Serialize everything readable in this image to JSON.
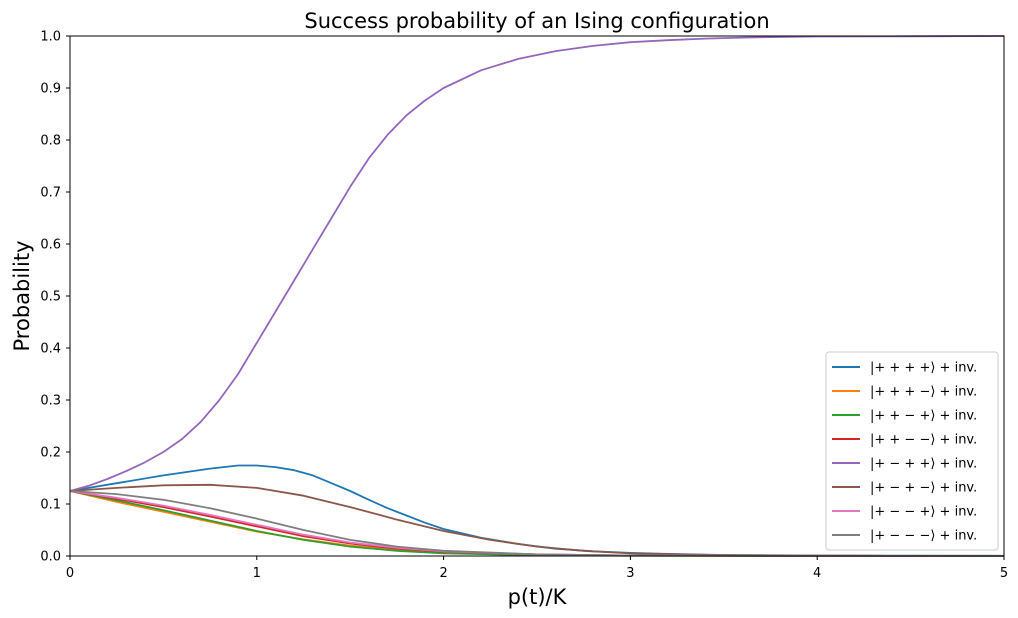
{
  "chart_data": {
    "type": "line",
    "title": "Success probability of an Ising configuration",
    "xlabel": "p(t)/K",
    "ylabel": "Probability",
    "xlim": [
      0,
      5
    ],
    "ylim": [
      0,
      1
    ],
    "xticks": [
      0,
      1,
      2,
      3,
      4,
      5
    ],
    "xtick_labels": [
      "0",
      "1",
      "2",
      "3",
      "4",
      "5"
    ],
    "yticks": [
      0,
      0.1,
      0.2,
      0.3,
      0.4,
      0.5,
      0.6,
      0.7,
      0.8,
      0.9,
      1.0
    ],
    "ytick_labels": [
      "0.0",
      "0.1",
      "0.2",
      "0.3",
      "0.4",
      "0.5",
      "0.6",
      "0.7",
      "0.8",
      "0.9",
      "1.0"
    ],
    "grid": false,
    "legend_position": "lower-right",
    "series": [
      {
        "name": "|+ + + +⟩ + inv.",
        "color": "#1f77b4",
        "x": [
          0,
          0.25,
          0.5,
          0.75,
          0.9,
          1.0,
          1.1,
          1.2,
          1.3,
          1.4,
          1.5,
          1.6,
          1.7,
          1.8,
          1.9,
          2.0,
          2.2,
          2.4,
          2.6,
          2.8,
          3.0,
          3.2,
          3.5,
          4.0,
          4.5,
          5.0
        ],
        "y": [
          0.125,
          0.14,
          0.155,
          0.168,
          0.174,
          0.174,
          0.171,
          0.165,
          0.155,
          0.14,
          0.125,
          0.108,
          0.092,
          0.078,
          0.064,
          0.052,
          0.035,
          0.023,
          0.014,
          0.009,
          0.006,
          0.004,
          0.002,
          0.001,
          0.0005,
          0.0003
        ]
      },
      {
        "name": "|+ + + −⟩ + inv.",
        "color": "#ff7f0e",
        "x": [
          0,
          0.25,
          0.5,
          0.75,
          1.0,
          1.25,
          1.5,
          1.75,
          2.0,
          2.5,
          3.0,
          4.0,
          5.0
        ],
        "y": [
          0.125,
          0.104,
          0.085,
          0.066,
          0.047,
          0.032,
          0.02,
          0.012,
          0.006,
          0.002,
          0.0008,
          0.0002,
          0.0001
        ]
      },
      {
        "name": "|+ + − +⟩ + inv.",
        "color": "#2ca02c",
        "x": [
          0,
          0.25,
          0.5,
          0.75,
          1.0,
          1.25,
          1.5,
          1.75,
          2.0,
          2.5,
          3.0,
          4.0,
          5.0
        ],
        "y": [
          0.125,
          0.107,
          0.088,
          0.068,
          0.048,
          0.031,
          0.018,
          0.01,
          0.005,
          0.0015,
          0.0005,
          0.0001,
          0.0001
        ]
      },
      {
        "name": "|+ + − −⟩ + inv.",
        "color": "#d62728",
        "x": [
          0,
          0.25,
          0.5,
          0.75,
          1.0,
          1.25,
          1.5,
          1.75,
          2.0,
          2.5,
          3.0,
          4.0,
          5.0
        ],
        "y": [
          0.125,
          0.11,
          0.094,
          0.076,
          0.057,
          0.038,
          0.024,
          0.014,
          0.008,
          0.003,
          0.001,
          0.0003,
          0.0001
        ]
      },
      {
        "name": "|+ − + +⟩ + inv.",
        "color": "#9467bd",
        "x": [
          0,
          0.1,
          0.2,
          0.3,
          0.4,
          0.5,
          0.6,
          0.7,
          0.8,
          0.9,
          1.0,
          1.1,
          1.2,
          1.3,
          1.4,
          1.5,
          1.6,
          1.7,
          1.8,
          1.9,
          2.0,
          2.2,
          2.4,
          2.6,
          2.8,
          3.0,
          3.2,
          3.4,
          3.6,
          3.8,
          4.0,
          4.5,
          5.0
        ],
        "y": [
          0.125,
          0.135,
          0.148,
          0.163,
          0.18,
          0.2,
          0.225,
          0.258,
          0.3,
          0.35,
          0.41,
          0.47,
          0.53,
          0.59,
          0.65,
          0.71,
          0.765,
          0.81,
          0.847,
          0.876,
          0.9,
          0.934,
          0.956,
          0.971,
          0.981,
          0.988,
          0.992,
          0.995,
          0.997,
          0.998,
          0.999,
          0.9995,
          1.0
        ]
      },
      {
        "name": "|+ − + −⟩ + inv.",
        "color": "#8c564b",
        "x": [
          0,
          0.25,
          0.5,
          0.75,
          1.0,
          1.25,
          1.5,
          1.75,
          2.0,
          2.25,
          2.5,
          2.75,
          3.0,
          3.5,
          4.0,
          4.5,
          5.0
        ],
        "y": [
          0.125,
          0.131,
          0.136,
          0.137,
          0.131,
          0.116,
          0.094,
          0.07,
          0.048,
          0.031,
          0.018,
          0.01,
          0.005,
          0.0015,
          0.0005,
          0.0002,
          0.0001
        ]
      },
      {
        "name": "|+ − − +⟩ + inv.",
        "color": "#e377c2",
        "x": [
          0,
          0.25,
          0.5,
          0.75,
          1.0,
          1.25,
          1.5,
          1.75,
          2.0,
          2.5,
          3.0,
          4.0,
          5.0
        ],
        "y": [
          0.125,
          0.112,
          0.097,
          0.079,
          0.06,
          0.041,
          0.026,
          0.016,
          0.009,
          0.003,
          0.001,
          0.0003,
          0.0001
        ]
      },
      {
        "name": "|+ − − −⟩ + inv.",
        "color": "#7f7f7f",
        "x": [
          0,
          0.25,
          0.5,
          0.75,
          1.0,
          1.25,
          1.5,
          1.75,
          2.0,
          2.5,
          3.0,
          4.0,
          5.0
        ],
        "y": [
          0.125,
          0.119,
          0.108,
          0.092,
          0.072,
          0.05,
          0.031,
          0.018,
          0.01,
          0.003,
          0.001,
          0.0003,
          0.0001
        ]
      }
    ]
  }
}
